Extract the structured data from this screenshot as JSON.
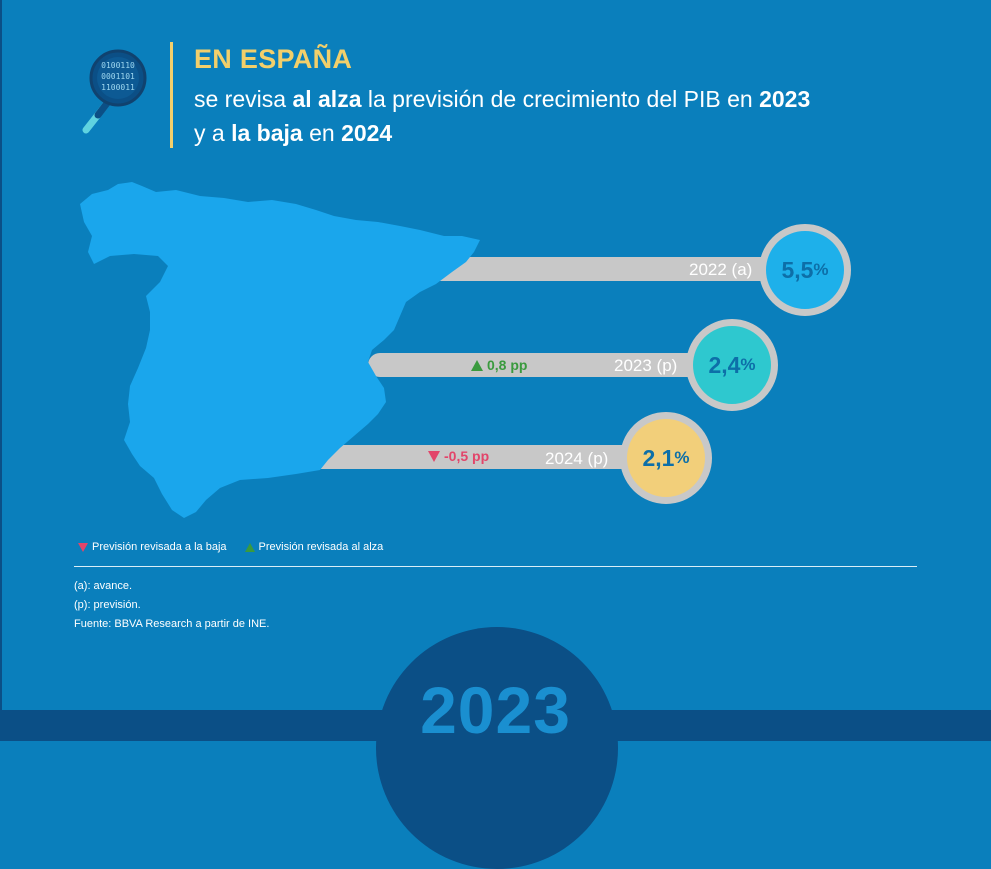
{
  "header": {
    "title": "EN ESPAÑA",
    "line1": {
      "pre": "se revisa ",
      "b1": "al alza",
      "mid": " la previsión de crecimiento del PIB en ",
      "b2": "2023"
    },
    "line2": {
      "pre": "y a ",
      "b1": "la baja",
      "mid": " en ",
      "b2": "2024"
    },
    "icon": "magnifier-binary-icon"
  },
  "chart_data": {
    "type": "bar",
    "title": "EN ESPAÑA",
    "categories": [
      "2022 (a)",
      "2023 (p)",
      "2024 (p)"
    ],
    "values": [
      5.5,
      2.4,
      2.1
    ],
    "value_labels": [
      "5,5",
      "2,4",
      "2,1"
    ],
    "unit": "%",
    "revisions": [
      {
        "category": "2022 (a)",
        "label": ""
      },
      {
        "category": "2023 (p)",
        "label": "0,8 pp",
        "direction": "up"
      },
      {
        "category": "2024 (p)",
        "label": "-0,5 pp",
        "direction": "down"
      }
    ],
    "bubble_colors": [
      "#1eb0ea",
      "#2ec8cf",
      "#f2cf7a"
    ],
    "revision_colors": {
      "up": "#3a9a3e",
      "down": "#e2456a"
    }
  },
  "legend": {
    "down": "Previsión revisada a la baja",
    "up": "Previsión revisada al alza"
  },
  "notes": {
    "a": "(a): avance.",
    "p": "(p): previsión.",
    "source": "Fuente: BBVA Research a partir de INE."
  },
  "footer": {
    "year": "2023"
  }
}
